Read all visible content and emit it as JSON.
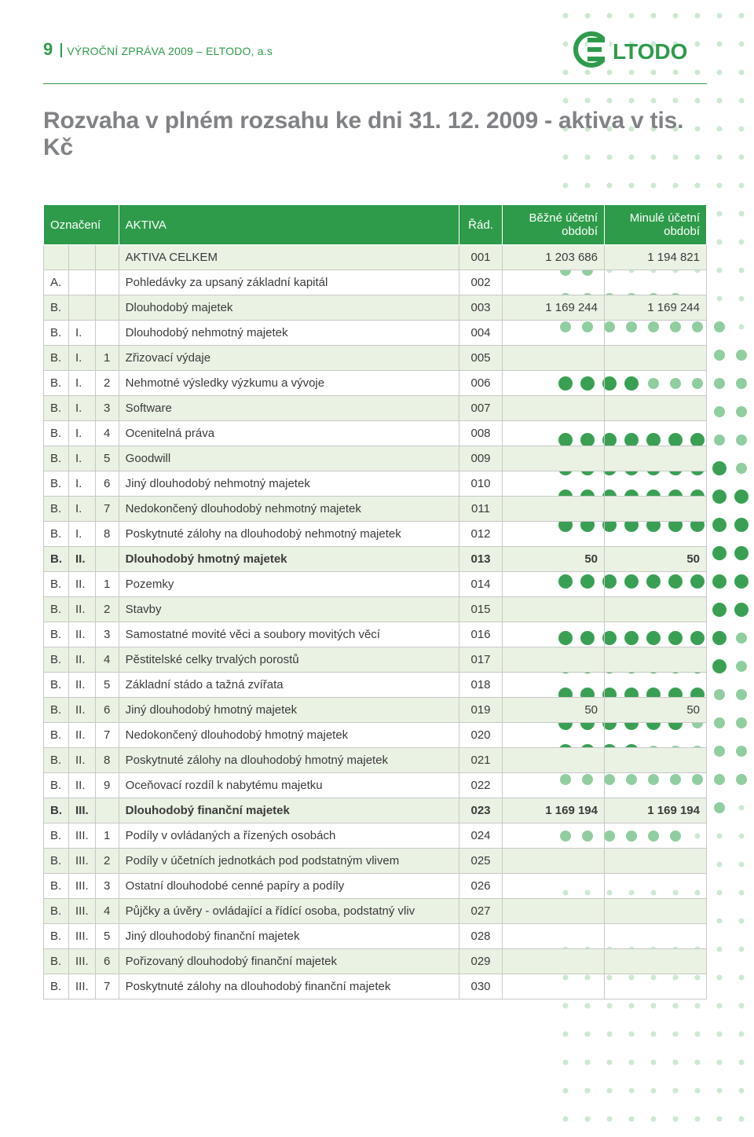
{
  "page_number": "9",
  "report_line": "VÝROČNÍ ZPRÁVA 2009 – ELTODO, a.s",
  "logo_text": "LTODO",
  "section_title": "Rozvaha v plném rozsahu ke dni 31. 12. 2009 - aktiva v tis. Kč",
  "colors": {
    "brand_green": "#2e9b4a",
    "stripe": "#eaf2e3",
    "title_grey": "#808285",
    "cell_border": "#c8c8c8",
    "dot_light": "#bfe3c6",
    "dot_mid": "#7cc68e"
  },
  "headers": {
    "oznaceni": "Označení",
    "aktiva": "AKTIVA",
    "rad": "Řád.",
    "bezne": "Běžné účetní období",
    "minule": "Minulé účetní období"
  },
  "rows": [
    {
      "c1": "",
      "c2": "",
      "c3": "",
      "desc": "AKTIVA CELKEM",
      "rad": "001",
      "bezne": "1 203 686",
      "minule": "1 194 821",
      "bold": false
    },
    {
      "c1": "A.",
      "c2": "",
      "c3": "",
      "desc": "Pohledávky za upsaný základní kapitál",
      "rad": "002",
      "bezne": "",
      "minule": "",
      "bold": false
    },
    {
      "c1": "B.",
      "c2": "",
      "c3": "",
      "desc": "Dlouhodobý majetek",
      "rad": "003",
      "bezne": "1 169 244",
      "minule": "1 169 244",
      "bold": false
    },
    {
      "c1": "B.",
      "c2": "I.",
      "c3": "",
      "desc": "Dlouhodobý nehmotný majetek",
      "rad": "004",
      "bezne": "",
      "minule": "",
      "bold": false
    },
    {
      "c1": "B.",
      "c2": "I.",
      "c3": "1",
      "desc": "Zřizovací výdaje",
      "rad": "005",
      "bezne": "",
      "minule": "",
      "bold": false
    },
    {
      "c1": "B.",
      "c2": "I.",
      "c3": "2",
      "desc": "Nehmotné výsledky výzkumu a vývoje",
      "rad": "006",
      "bezne": "",
      "minule": "",
      "bold": false
    },
    {
      "c1": "B.",
      "c2": "I.",
      "c3": "3",
      "desc": "Software",
      "rad": "007",
      "bezne": "",
      "minule": "",
      "bold": false
    },
    {
      "c1": "B.",
      "c2": "I.",
      "c3": "4",
      "desc": "Ocenitelná práva",
      "rad": "008",
      "bezne": "",
      "minule": "",
      "bold": false
    },
    {
      "c1": "B.",
      "c2": "I.",
      "c3": "5",
      "desc": "Goodwill",
      "rad": "009",
      "bezne": "",
      "minule": "",
      "bold": false
    },
    {
      "c1": "B.",
      "c2": "I.",
      "c3": "6",
      "desc": "Jiný dlouhodobý nehmotný majetek",
      "rad": "010",
      "bezne": "",
      "minule": "",
      "bold": false
    },
    {
      "c1": "B.",
      "c2": "I.",
      "c3": "7",
      "desc": "Nedokončený dlouhodobý nehmotný majetek",
      "rad": "011",
      "bezne": "",
      "minule": "",
      "bold": false
    },
    {
      "c1": "B.",
      "c2": "I.",
      "c3": "8",
      "desc": "Poskytnuté zálohy na dlouhodobý nehmotný majetek",
      "rad": "012",
      "bezne": "",
      "minule": "",
      "bold": false
    },
    {
      "c1": "B.",
      "c2": "II.",
      "c3": "",
      "desc": "Dlouhodobý hmotný majetek",
      "rad": "013",
      "bezne": "50",
      "minule": "50",
      "bold": true
    },
    {
      "c1": "B.",
      "c2": "II.",
      "c3": "1",
      "desc": "Pozemky",
      "rad": "014",
      "bezne": "",
      "minule": "",
      "bold": false
    },
    {
      "c1": "B.",
      "c2": "II.",
      "c3": "2",
      "desc": "Stavby",
      "rad": "015",
      "bezne": "",
      "minule": "",
      "bold": false
    },
    {
      "c1": "B.",
      "c2": "II.",
      "c3": "3",
      "desc": "Samostatné movité věci a soubory movitých věcí",
      "rad": "016",
      "bezne": "",
      "minule": "",
      "bold": false
    },
    {
      "c1": "B.",
      "c2": "II.",
      "c3": "4",
      "desc": "Pěstitelské celky trvalých porostů",
      "rad": "017",
      "bezne": "",
      "minule": "",
      "bold": false
    },
    {
      "c1": "B.",
      "c2": "II.",
      "c3": "5",
      "desc": "Základní stádo a tažná zvířata",
      "rad": "018",
      "bezne": "",
      "minule": "",
      "bold": false
    },
    {
      "c1": "B.",
      "c2": "II.",
      "c3": "6",
      "desc": "Jiný dlouhodobý hmotný majetek",
      "rad": "019",
      "bezne": "50",
      "minule": "50",
      "bold": false
    },
    {
      "c1": "B.",
      "c2": "II.",
      "c3": "7",
      "desc": "Nedokončený dlouhodobý hmotný majetek",
      "rad": "020",
      "bezne": "",
      "minule": "",
      "bold": false
    },
    {
      "c1": "B.",
      "c2": "II.",
      "c3": "8",
      "desc": "Poskytnuté zálohy na dlouhodobý hmotný majetek",
      "rad": "021",
      "bezne": "",
      "minule": "",
      "bold": false
    },
    {
      "c1": "B.",
      "c2": "II.",
      "c3": "9",
      "desc": "Oceňovací rozdíl k nabytému majetku",
      "rad": "022",
      "bezne": "",
      "minule": "",
      "bold": false
    },
    {
      "c1": "B.",
      "c2": "III.",
      "c3": "",
      "desc": "Dlouhodobý finanční majetek",
      "rad": "023",
      "bezne": "1 169 194",
      "minule": "1 169 194",
      "bold": true
    },
    {
      "c1": "B.",
      "c2": "III.",
      "c3": "1",
      "desc": "Podíly v ovládaných a řízených osobách",
      "rad": "024",
      "bezne": "",
      "minule": "",
      "bold": false
    },
    {
      "c1": "B.",
      "c2": "III.",
      "c3": "2",
      "desc": "Podíly v účetních jednotkách pod podstatným vlivem",
      "rad": "025",
      "bezne": "",
      "minule": "",
      "bold": false
    },
    {
      "c1": "B.",
      "c2": "III.",
      "c3": "3",
      "desc": "Ostatní dlouhodobé cenné papíry a podíly",
      "rad": "026",
      "bezne": "",
      "minule": "",
      "bold": false
    },
    {
      "c1": "B.",
      "c2": "III.",
      "c3": "4",
      "desc": "Půjčky a úvěry - ovládající a řídící osoba, podstatný vliv",
      "rad": "027",
      "bezne": "",
      "minule": "",
      "bold": false
    },
    {
      "c1": "B.",
      "c2": "III.",
      "c3": "5",
      "desc": "Jiný dlouhodobý finanční majetek",
      "rad": "028",
      "bezne": "",
      "minule": "",
      "bold": false
    },
    {
      "c1": "B.",
      "c2": "III.",
      "c3": "6",
      "desc": "Pořizovaný dlouhodobý finanční majetek",
      "rad": "029",
      "bezne": "",
      "minule": "",
      "bold": false
    },
    {
      "c1": "B.",
      "c2": "III.",
      "c3": "7",
      "desc": "Poskytnuté zálohy na dlouhodobý finanční majetek",
      "rad": "030",
      "bezne": "",
      "minule": "",
      "bold": false
    }
  ]
}
